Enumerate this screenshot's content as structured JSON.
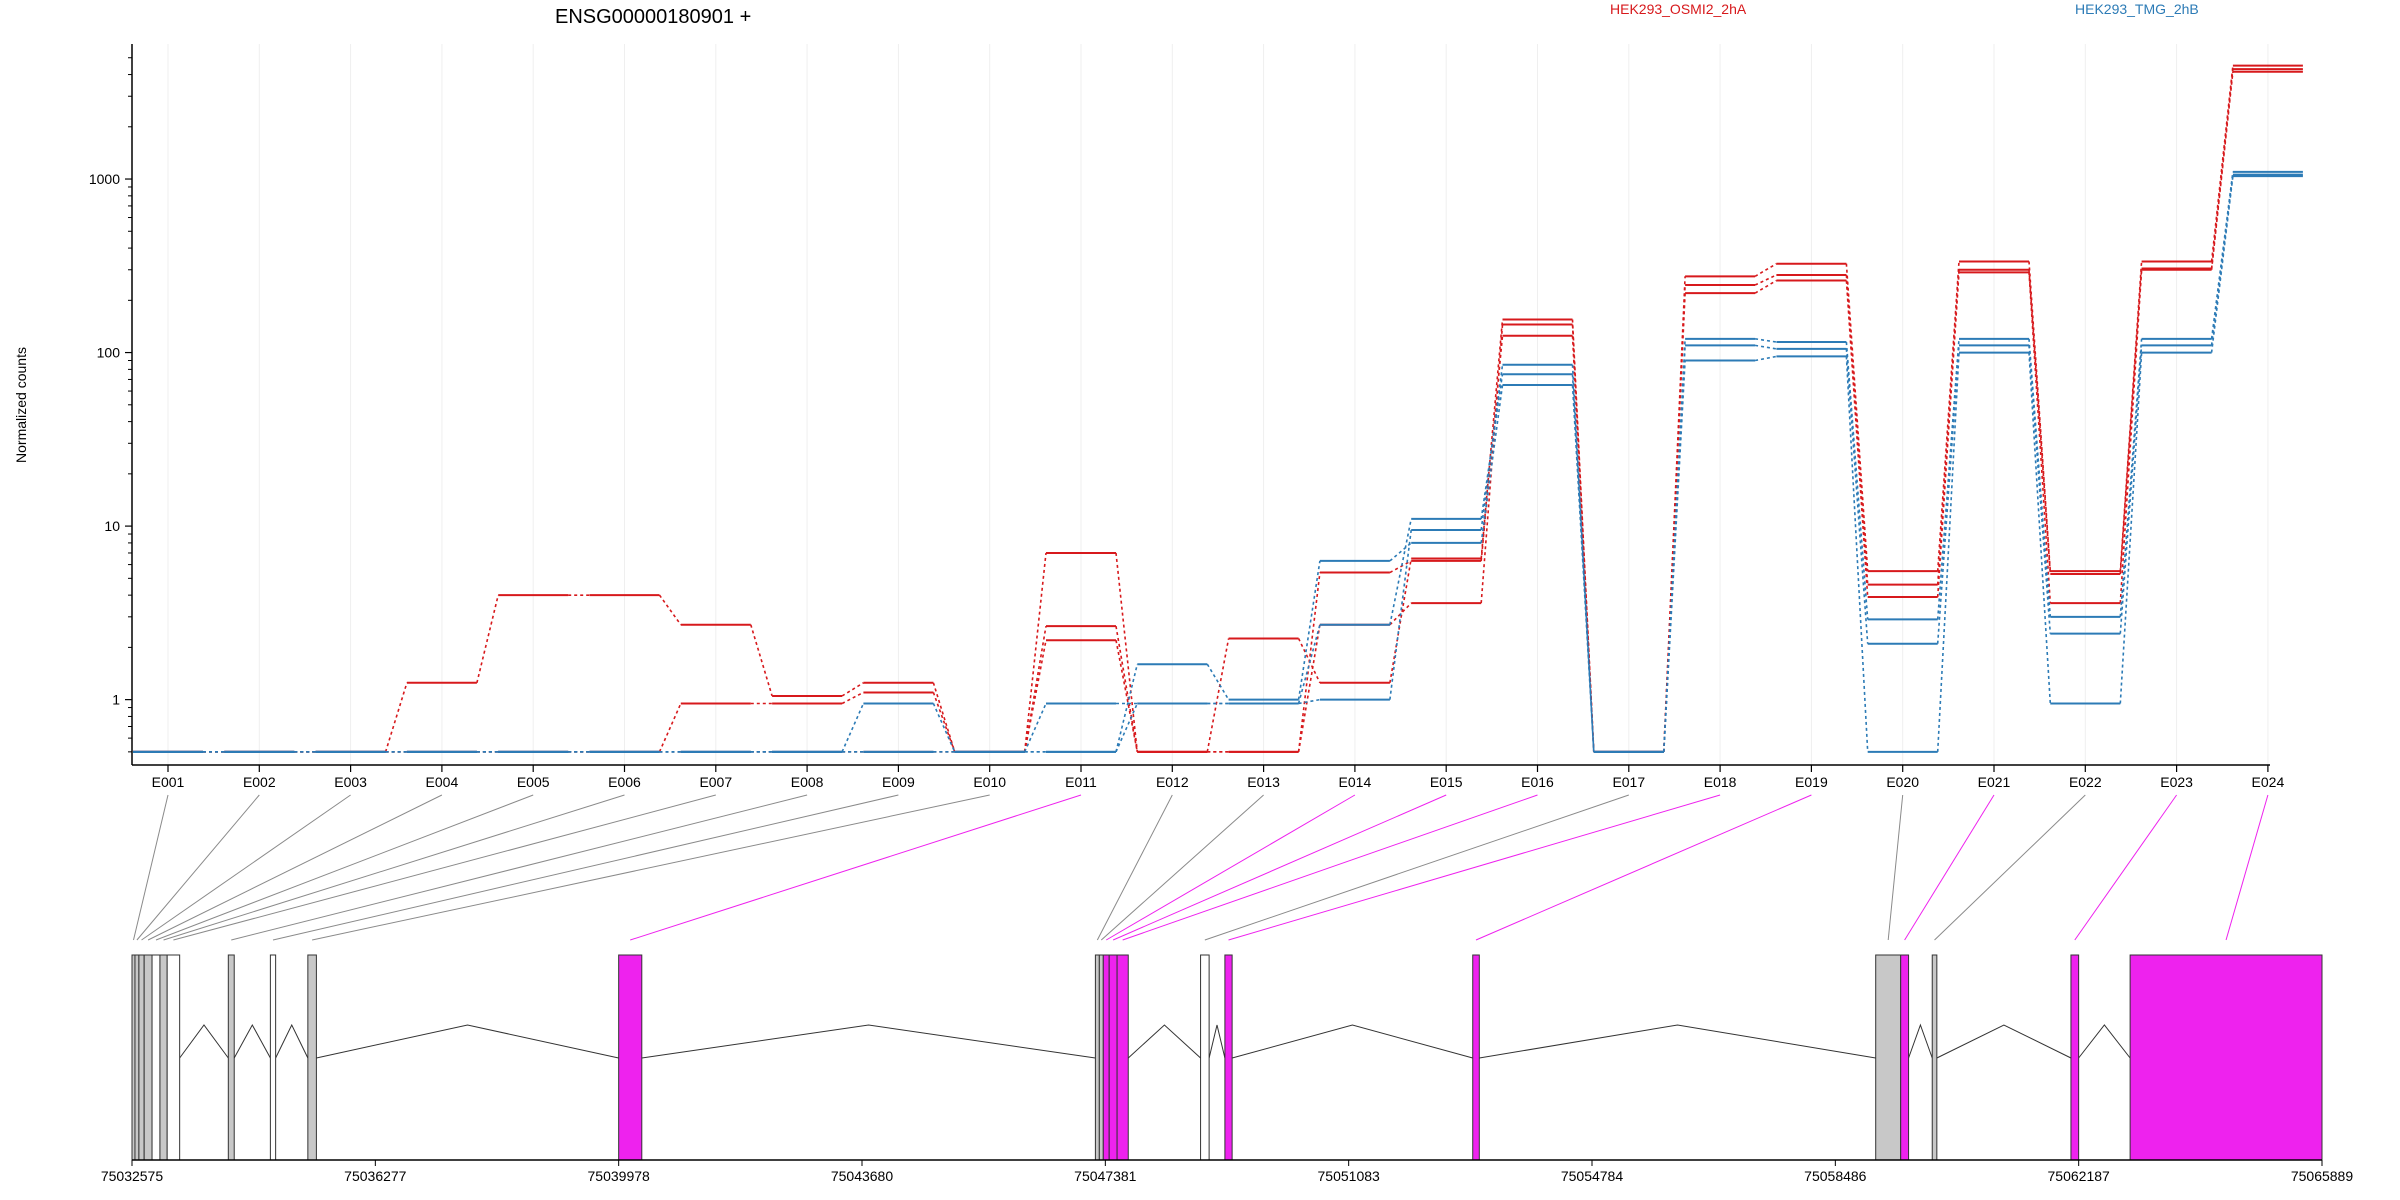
{
  "chart_data": {
    "type": "line",
    "title": "ENSG00000180901 +",
    "ylabel": "Normalized counts",
    "xlabel": "",
    "yscale": "log",
    "ylim": [
      0.42,
      6000
    ],
    "grid": "vertical-only",
    "legend_placement": "top",
    "y_ticks": [
      1,
      10,
      100,
      1000
    ],
    "y_tick_labels": [
      "1",
      "10",
      "100",
      "1000"
    ],
    "categories": [
      "E001",
      "E002",
      "E003",
      "E004",
      "E005",
      "E006",
      "E007",
      "E008",
      "E009",
      "E010",
      "E011",
      "E012",
      "E013",
      "E014",
      "E015",
      "E016",
      "E017",
      "E018",
      "E019",
      "E020",
      "E021",
      "E022",
      "E023",
      "E024"
    ],
    "groups": [
      {
        "name": "HEK293_OSMI2_2hA",
        "color": "#d7191c"
      },
      {
        "name": "HEK293_TMG_2hB",
        "color": "#2c7bb6"
      }
    ],
    "series": [
      {
        "group": 0,
        "values": [
          0.5,
          0.5,
          0.5,
          1.25,
          4,
          4,
          2.7,
          1.05,
          1.25,
          0.5,
          2.65,
          0.5,
          2.25,
          1.25,
          6.5,
          155,
          0.5,
          275,
          325,
          5.5,
          335,
          5.5,
          335,
          4500
        ]
      },
      {
        "group": 0,
        "values": [
          0.5,
          0.5,
          0.5,
          0.5,
          0.5,
          0.5,
          0.95,
          0.95,
          1.1,
          0.5,
          2.2,
          0.5,
          0.5,
          2.7,
          3.6,
          145,
          0.5,
          245,
          280,
          4.6,
          300,
          5.3,
          305,
          4300
        ]
      },
      {
        "group": 0,
        "values": [
          0.5,
          0.5,
          0.5,
          0.5,
          0.5,
          0.5,
          0.5,
          0.5,
          0.5,
          0.5,
          7,
          0.5,
          0.5,
          5.4,
          6.3,
          125,
          0.5,
          220,
          260,
          3.9,
          290,
          3.6,
          300,
          4150
        ]
      },
      {
        "group": 1,
        "values": [
          0.5,
          0.5,
          0.5,
          0.5,
          0.5,
          0.5,
          0.5,
          0.5,
          0.5,
          0.5,
          0.5,
          0.95,
          0.95,
          1,
          9.5,
          85,
          0.5,
          120,
          115,
          2.9,
          120,
          3,
          120,
          1100
        ]
      },
      {
        "group": 1,
        "values": [
          0.5,
          0.5,
          0.5,
          0.5,
          0.5,
          0.5,
          0.5,
          0.5,
          0.95,
          0.5,
          0.95,
          0.95,
          0.95,
          2.7,
          11,
          75,
          0.5,
          110,
          105,
          2.1,
          110,
          2.4,
          110,
          1060
        ]
      },
      {
        "group": 1,
        "values": [
          0.5,
          0.5,
          0.5,
          0.5,
          0.5,
          0.5,
          0.5,
          0.5,
          0.5,
          0.5,
          0.5,
          1.6,
          1,
          6.3,
          8,
          65,
          0.5,
          90,
          95,
          0.5,
          100,
          0.95,
          100,
          1040
        ]
      }
    ],
    "gene_model": {
      "coord_labels": [
        "75032575",
        "75036277",
        "75039978",
        "75043680",
        "75047381",
        "75051083",
        "75054784",
        "75058486",
        "75062187",
        "75065889"
      ],
      "coord_range": [
        75032575,
        75065889
      ],
      "exon_color_significant": "#ee22ee",
      "exon_color_other": "#c8c8c8",
      "exon_color_empty": "#ffffff",
      "exons": [
        {
          "id": "E001",
          "start": 75032575,
          "end": 75032620,
          "fill": "other"
        },
        {
          "id": "E002",
          "start": 75032620,
          "end": 75032680,
          "fill": "other"
        },
        {
          "id": "E003",
          "start": 75032680,
          "end": 75032760,
          "fill": "other"
        },
        {
          "id": "E004",
          "start": 75032760,
          "end": 75032880,
          "fill": "other"
        },
        {
          "id": "E005",
          "start": 75032880,
          "end": 75033000,
          "fill": "empty"
        },
        {
          "id": "E006",
          "start": 75033000,
          "end": 75033110,
          "fill": "other"
        },
        {
          "id": "E007",
          "start": 75033110,
          "end": 75033300,
          "fill": "empty"
        },
        {
          "id": "E008",
          "start": 75034040,
          "end": 75034130,
          "fill": "other"
        },
        {
          "id": "E009",
          "start": 75034680,
          "end": 75034760,
          "fill": "empty"
        },
        {
          "id": "E010",
          "start": 75035250,
          "end": 75035380,
          "fill": "other"
        },
        {
          "id": "E011",
          "start": 75039978,
          "end": 75040330,
          "fill": "significant"
        },
        {
          "id": "E012",
          "start": 75047230,
          "end": 75047290,
          "fill": "other"
        },
        {
          "id": "E013",
          "start": 75047290,
          "end": 75047350,
          "fill": "other"
        },
        {
          "id": "E014",
          "start": 75047350,
          "end": 75047440,
          "fill": "significant"
        },
        {
          "id": "E015",
          "start": 75047440,
          "end": 75047560,
          "fill": "significant"
        },
        {
          "id": "E016",
          "start": 75047560,
          "end": 75047730,
          "fill": "significant"
        },
        {
          "id": "E017",
          "start": 75048830,
          "end": 75048960,
          "fill": "empty"
        },
        {
          "id": "E018",
          "start": 75049200,
          "end": 75049310,
          "fill": "significant"
        },
        {
          "id": "E019",
          "start": 75052970,
          "end": 75053070,
          "fill": "significant"
        },
        {
          "id": "E020",
          "start": 75059100,
          "end": 75059480,
          "fill": "other"
        },
        {
          "id": "E021",
          "start": 75059480,
          "end": 75059600,
          "fill": "significant"
        },
        {
          "id": "E022",
          "start": 75059960,
          "end": 75060030,
          "fill": "other"
        },
        {
          "id": "E023",
          "start": 75062070,
          "end": 75062187,
          "fill": "significant"
        },
        {
          "id": "E024",
          "start": 75062970,
          "end": 75065889,
          "fill": "significant"
        }
      ]
    }
  }
}
